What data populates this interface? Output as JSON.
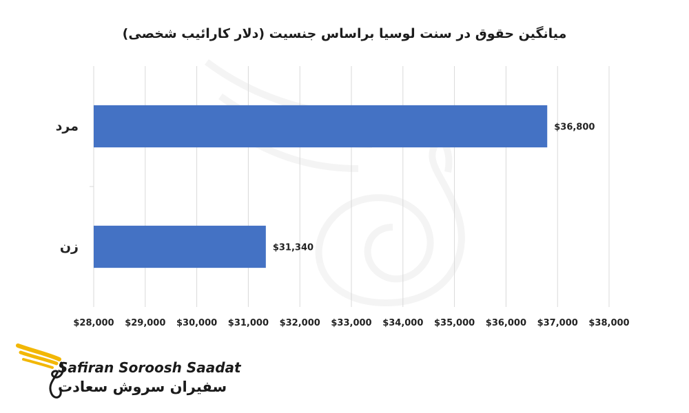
{
  "chart_data": {
    "type": "bar",
    "orientation": "horizontal",
    "title": "میانگین حقوق در سنت لوسیا براساس جنسیت (دلار کارائیب شخصی)",
    "categories": [
      "مرد",
      "زن"
    ],
    "values": [
      36800,
      31340
    ],
    "data_labels": [
      "$36,800",
      "$31,340"
    ],
    "xlim": [
      28000,
      38000
    ],
    "x_ticks": [
      28000,
      29000,
      30000,
      31000,
      32000,
      33000,
      34000,
      35000,
      36000,
      37000,
      38000
    ],
    "x_tick_labels": [
      "$28,000",
      "$29,000",
      "$30,000",
      "$31,000",
      "$32,000",
      "$33,000",
      "$34,000",
      "$35,000",
      "$36,000",
      "$37,000",
      "$38,000"
    ],
    "xlabel": "",
    "ylabel": "",
    "grid": true,
    "legend": "none",
    "bar_color": "#4472C4"
  },
  "logo": {
    "text_en": "Safiran Soroosh Saadat",
    "text_fa": "سفیران سروش سعادت",
    "accent_color": "#F2B705"
  }
}
